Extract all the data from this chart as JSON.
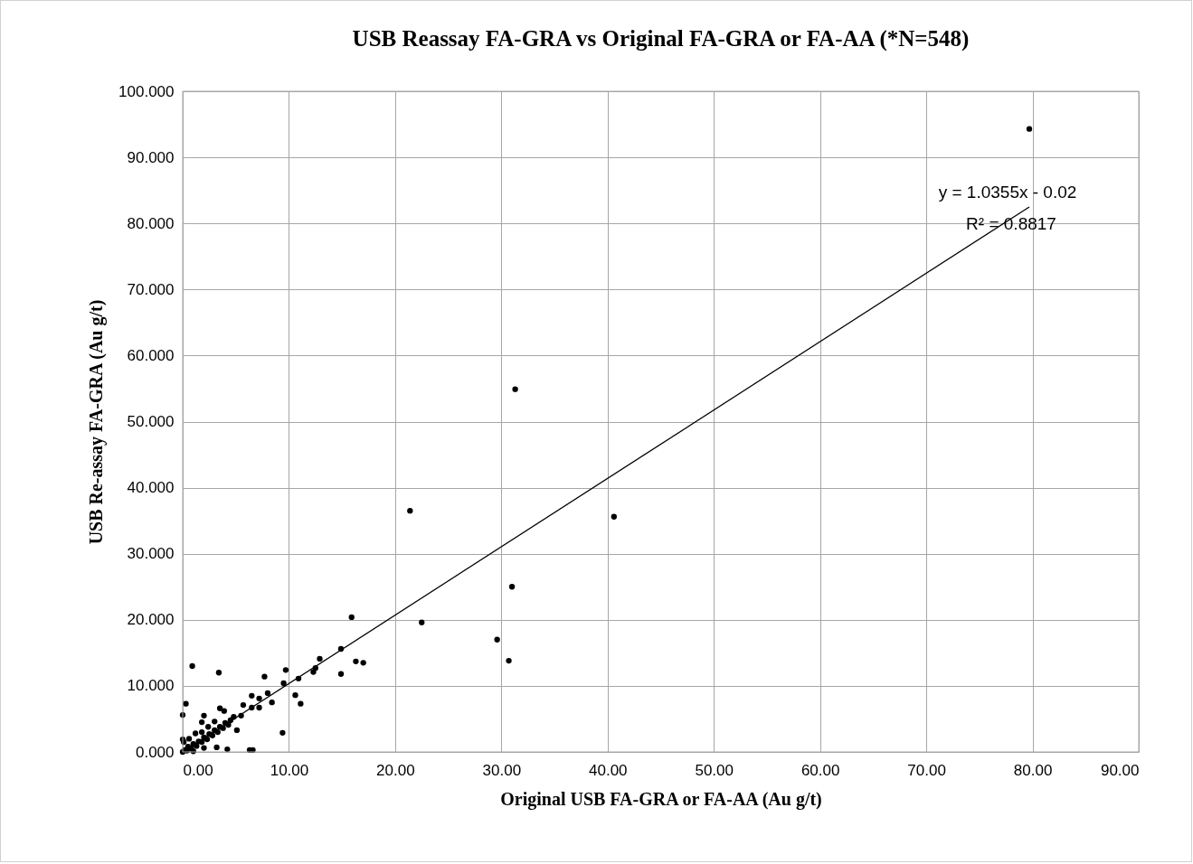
{
  "chart_data": {
    "type": "scatter",
    "title": "USB Reassay FA-GRA vs Original FA-GRA or FA-AA (*N=548)",
    "xlabel": "Original USB FA-GRA or FA-AA (Au g/t)",
    "ylabel": "USB Re-assay FA-GRA (Au g/t)",
    "xlim": [
      0,
      90
    ],
    "ylim": [
      0,
      100
    ],
    "xticks": [
      {
        "value": 0,
        "label": "0.00"
      },
      {
        "value": 10,
        "label": "10.00"
      },
      {
        "value": 20,
        "label": "20.00"
      },
      {
        "value": 30,
        "label": "30.00"
      },
      {
        "value": 40,
        "label": "40.00"
      },
      {
        "value": 50,
        "label": "50.00"
      },
      {
        "value": 60,
        "label": "60.00"
      },
      {
        "value": 70,
        "label": "70.00"
      },
      {
        "value": 80,
        "label": "80.00"
      },
      {
        "value": 90,
        "label": "90.00"
      }
    ],
    "yticks": [
      {
        "value": 0,
        "label": "0.000"
      },
      {
        "value": 10,
        "label": "10.000"
      },
      {
        "value": 20,
        "label": "20.000"
      },
      {
        "value": 30,
        "label": "30.000"
      },
      {
        "value": 40,
        "label": "40.000"
      },
      {
        "value": 50,
        "label": "50.000"
      },
      {
        "value": 60,
        "label": "60.000"
      },
      {
        "value": 70,
        "label": "70.000"
      },
      {
        "value": 80,
        "label": "80.000"
      },
      {
        "value": 90,
        "label": "90.000"
      },
      {
        "value": 100,
        "label": "100.000"
      }
    ],
    "grid": true,
    "marker": "circle",
    "annotations": [
      "y = 1.0355x - 0.02",
      "R² = 0.8817"
    ],
    "series": [
      {
        "color": "#000000",
        "x": [
          79.7,
          31.3,
          21.4,
          40.6,
          31.0,
          15.9,
          22.5,
          29.6,
          30.7,
          0.9,
          3.4,
          7.7,
          9.7,
          9.5,
          10.9,
          12.3,
          12.5,
          12.9,
          14.9,
          16.3,
          17.0,
          10.6,
          11.1,
          9.4,
          0.3,
          0.0,
          6.5,
          5.7,
          7.2,
          7.2,
          8.0,
          8.4,
          6.5,
          3.5,
          3.9,
          4.8,
          5.5,
          2.0,
          1.8,
          5.1,
          3.2,
          4.2,
          6.3,
          6.6,
          1.8,
          0.0,
          0.0,
          0.2,
          0.4,
          0.5,
          0.8,
          1.0,
          1.3,
          1.5,
          1.8,
          2.0,
          2.3,
          2.5,
          2.8,
          3.0,
          3.3,
          3.5,
          3.8,
          4.0,
          4.3,
          4.5,
          0.1,
          0.6,
          1.2,
          2.4,
          3.0,
          2.0,
          1.0,
          14.9
        ],
        "values": [
          94.3,
          54.9,
          36.5,
          35.6,
          25.0,
          20.4,
          19.6,
          17.0,
          13.8,
          13.0,
          12.0,
          11.4,
          12.4,
          10.4,
          11.1,
          12.1,
          12.7,
          14.1,
          11.8,
          13.7,
          13.5,
          8.6,
          7.3,
          2.9,
          7.3,
          5.6,
          8.5,
          7.1,
          8.1,
          6.7,
          8.9,
          7.5,
          6.7,
          6.6,
          6.2,
          5.3,
          5.5,
          5.5,
          4.5,
          3.3,
          0.7,
          0.4,
          0.3,
          0.3,
          3.0,
          1.9,
          0.0,
          0.3,
          0.2,
          0.8,
          0.5,
          1.2,
          0.9,
          1.6,
          1.5,
          2.2,
          1.9,
          2.7,
          2.5,
          3.3,
          3.0,
          3.8,
          3.6,
          4.4,
          4.1,
          4.8,
          1.5,
          2.0,
          2.8,
          3.8,
          4.6,
          0.6,
          0.1,
          15.6
        ]
      },
      {
        "type": "line",
        "color": "#000000",
        "marker": "none",
        "x": [
          0,
          79.7
        ],
        "values": [
          0,
          82.5
        ]
      }
    ]
  }
}
